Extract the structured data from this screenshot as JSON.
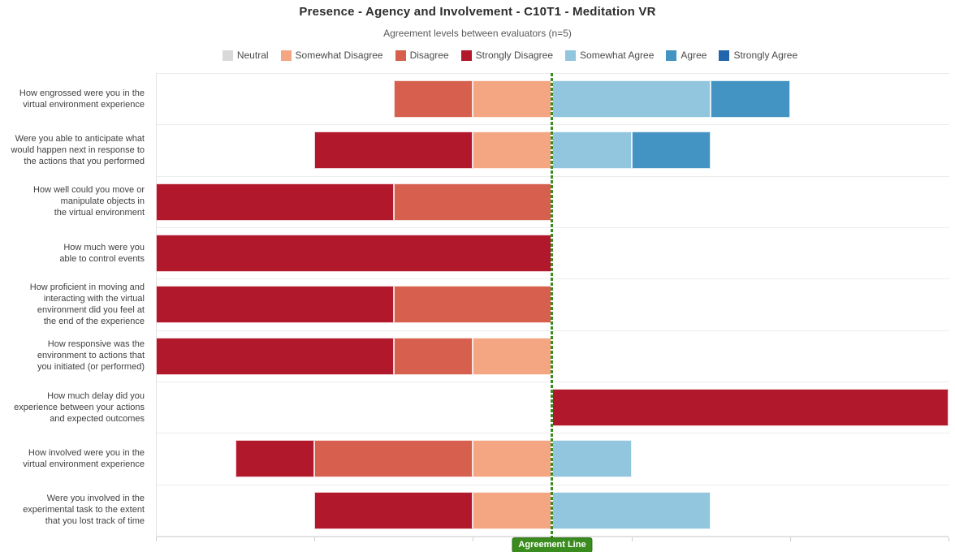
{
  "header": {
    "title": "Presence - Agency and Involvement - C10T1 - Meditation VR",
    "subtitle": "Agreement levels between evaluators (n=5)"
  },
  "agreement_line_label": "Agreement Line",
  "chart_data": {
    "type": "diverging-stacked-bar",
    "title": "Presence - Agency and Involvement - C10T1 - Meditation VR",
    "subtitle": "Agreement levels between evaluators (n=5)",
    "n_evaluators": 5,
    "units": "number of evaluators (1 unit = 1 evaluator)",
    "axis": {
      "range_units": [
        -5,
        5
      ],
      "tick_units": [
        0,
        2,
        4,
        6,
        8,
        10
      ],
      "center_line_label": "Agreement Line",
      "grid": "horizontal-only"
    },
    "legend": [
      "Neutral",
      "Somewhat Disagree",
      "Disagree",
      "Strongly Disagree",
      "Somewhat Agree",
      "Agree",
      "Strongly Agree"
    ],
    "colors": {
      "Neutral": "#d9d9d9",
      "Somewhat Disagree": "#f4a582",
      "Disagree": "#d6604d",
      "Strongly Disagree": "#b2182b",
      "Somewhat Agree": "#92c5de",
      "Agree": "#4393c3",
      "Strongly Agree": "#2166ac",
      "agreement_line": "#3a8c1e"
    },
    "rows": [
      {
        "label_lines": [
          "How engrossed were you in the",
          "virtual environment experience"
        ],
        "left": [
          [
            "Disagree",
            1
          ],
          [
            "Somewhat Disagree",
            1
          ]
        ],
        "right": [
          [
            "Somewhat Agree",
            2
          ],
          [
            "Agree",
            1
          ]
        ]
      },
      {
        "label_lines": [
          "Were you able to anticipate what",
          "would happen next in response to",
          "the actions that you performed"
        ],
        "left": [
          [
            "Strongly Disagree",
            2
          ],
          [
            "Somewhat Disagree",
            1
          ]
        ],
        "right": [
          [
            "Somewhat Agree",
            1
          ],
          [
            "Agree",
            1
          ]
        ]
      },
      {
        "label_lines": [
          "How well could you move or",
          "manipulate objects in",
          "the virtual environment"
        ],
        "left": [
          [
            "Strongly Disagree",
            3
          ],
          [
            "Disagree",
            2
          ]
        ],
        "right": []
      },
      {
        "label_lines": [
          "How much were you",
          "able to control events"
        ],
        "left": [
          [
            "Strongly Disagree",
            5
          ]
        ],
        "right": []
      },
      {
        "label_lines": [
          "How proficient in moving and",
          "interacting with the virtual",
          "environment did you feel at",
          "the end of the experience"
        ],
        "left": [
          [
            "Strongly Disagree",
            3
          ],
          [
            "Disagree",
            2
          ]
        ],
        "right": []
      },
      {
        "label_lines": [
          "How responsive was the",
          "environment to actions that",
          "you initiated (or performed)"
        ],
        "left": [
          [
            "Strongly Disagree",
            3
          ],
          [
            "Disagree",
            1
          ],
          [
            "Somewhat Disagree",
            1
          ]
        ],
        "right": []
      },
      {
        "label_lines": [
          "How much delay did you",
          "experience between your actions",
          "and expected outcomes"
        ],
        "left": [],
        "right": [
          [
            "Strongly Disagree",
            5
          ]
        ]
      },
      {
        "label_lines": [
          "How involved were you in the",
          "virtual environment experience"
        ],
        "left": [
          [
            "Strongly Disagree",
            1
          ],
          [
            "Disagree",
            2
          ],
          [
            "Somewhat Disagree",
            1
          ]
        ],
        "right": [
          [
            "Somewhat Agree",
            1
          ]
        ]
      },
      {
        "label_lines": [
          "Were you involved in the",
          "experimental task to the extent",
          "that you lost track of time"
        ],
        "left": [
          [
            "Strongly Disagree",
            2
          ],
          [
            "Somewhat Disagree",
            1
          ]
        ],
        "right": [
          [
            "Somewhat Agree",
            2
          ]
        ]
      }
    ]
  }
}
